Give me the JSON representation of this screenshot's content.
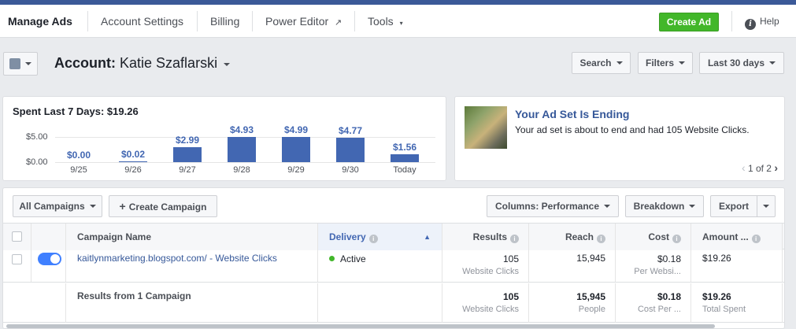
{
  "nav": {
    "manage_ads": "Manage Ads",
    "account_settings": "Account Settings",
    "billing": "Billing",
    "power_editor": "Power Editor",
    "tools": "Tools",
    "create_ad": "Create Ad",
    "help": "Help"
  },
  "account": {
    "label": "Account:",
    "name": "Katie Szaflarski"
  },
  "toolbar": {
    "search": "Search",
    "filters": "Filters",
    "date_range": "Last 30 days"
  },
  "spend_card": {
    "title": "Spent Last 7 Days: $19.26"
  },
  "chart_data": {
    "type": "bar",
    "title": "Spent Last 7 Days: $19.26",
    "categories": [
      "9/25",
      "9/26",
      "9/27",
      "9/28",
      "9/29",
      "9/30",
      "Today"
    ],
    "values": [
      0.0,
      0.02,
      2.99,
      4.93,
      4.99,
      4.77,
      1.56
    ],
    "value_labels": [
      "$0.00",
      "$0.02",
      "$2.99",
      "$4.93",
      "$4.99",
      "$4.77",
      "$1.56"
    ],
    "yticks": [
      "$5.00",
      "$0.00"
    ],
    "ylim": [
      0,
      5
    ],
    "color": "#4267b2"
  },
  "notification": {
    "title": "Your Ad Set Is Ending",
    "body": "Your ad set is about to end and had 105 Website Clicks.",
    "pager": "1 of 2"
  },
  "table_toolbar": {
    "all_campaigns": "All Campaigns",
    "create_campaign": "Create Campaign",
    "columns": "Columns: Performance",
    "breakdown": "Breakdown",
    "export": "Export"
  },
  "table": {
    "headers": {
      "name": "Campaign Name",
      "delivery": "Delivery",
      "results": "Results",
      "reach": "Reach",
      "cost": "Cost",
      "amount": "Amount ..."
    },
    "row": {
      "name": "kaitlynmarketing.blogspot.com/ - Website Clicks",
      "delivery": "Active",
      "results": "105",
      "results_sub": "Website Clicks",
      "reach": "15,945",
      "cost": "$0.18",
      "cost_sub": "Per Websi...",
      "amount": "$19.26"
    },
    "summary": {
      "label": "Results from 1 Campaign",
      "results": "105",
      "results_sub": "Website Clicks",
      "reach": "15,945",
      "reach_sub": "People",
      "cost": "$0.18",
      "cost_sub": "Cost Per ...",
      "amount": "$19.26",
      "amount_sub": "Total Spent"
    }
  },
  "colors": {
    "accent": "#4267b2",
    "create_green": "#42b72a",
    "active_dot": "#42b72a",
    "header_blue": "#3b5998"
  }
}
